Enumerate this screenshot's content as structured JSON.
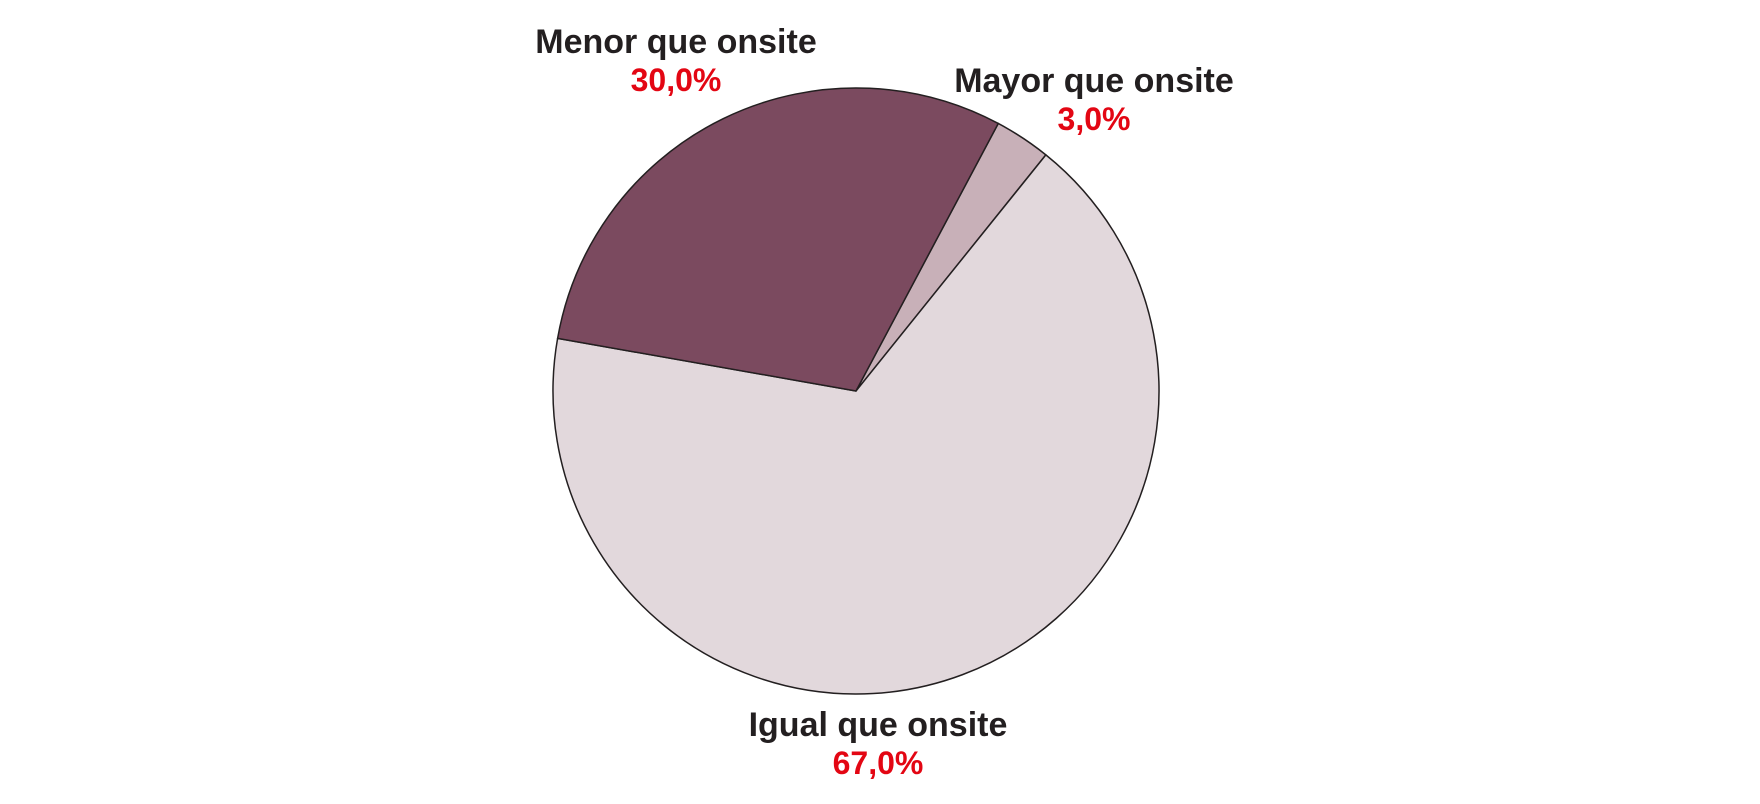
{
  "chart_data": {
    "type": "pie",
    "title": "",
    "slices": [
      {
        "name": "Mayor que onsite",
        "value_label": "3,0%",
        "value": 3.0,
        "color": "#c8b0b8"
      },
      {
        "name": "Igual que onsite",
        "value_label": "67,0%",
        "value": 67.0,
        "color": "#e2d8dc"
      },
      {
        "name": "Menor que onsite",
        "value_label": "30,0%",
        "value": 30.0,
        "color": "#7b4a5f"
      }
    ],
    "start_angle_deg": 28,
    "direction": "clockwise",
    "outline_color": "#231f20",
    "value_label_color": "#e30613"
  }
}
